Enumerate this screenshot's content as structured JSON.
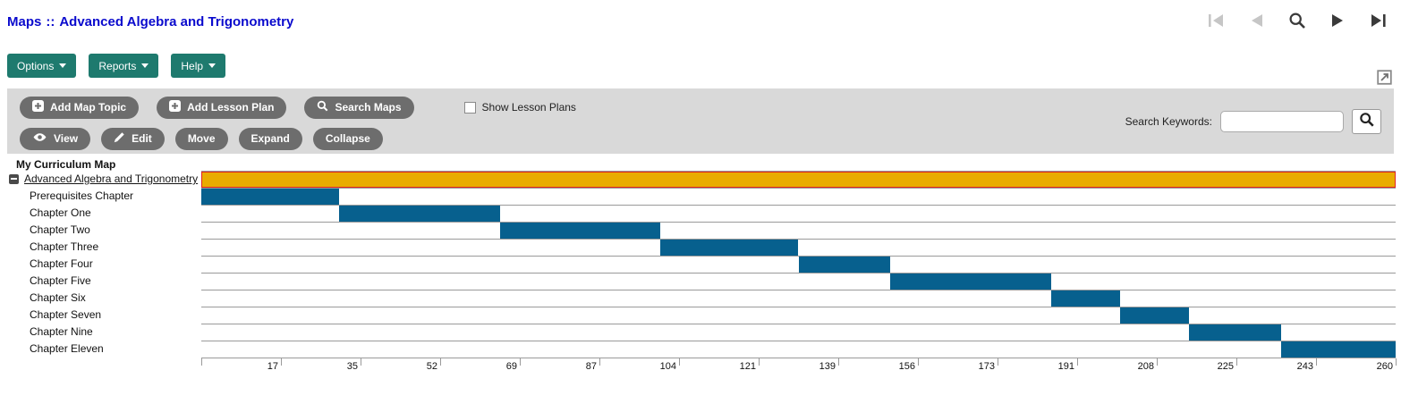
{
  "header": {
    "breadcrumb_root": "Maps",
    "breadcrumb_separator": "::",
    "title": "Advanced Algebra and Trigonometry"
  },
  "nav": {
    "first_icon": "first-page-icon",
    "prev_icon": "previous-page-icon",
    "search_icon": "search-icon",
    "next_icon": "next-page-icon",
    "last_icon": "last-page-icon"
  },
  "menus": {
    "options": "Options",
    "reports": "Reports",
    "help": "Help"
  },
  "toolbar": {
    "add_map_topic": "Add Map Topic",
    "add_lesson_plan": "Add Lesson Plan",
    "search_maps": "Search Maps",
    "show_lesson_plans": "Show Lesson Plans",
    "show_lesson_plans_checked": false,
    "view": "View",
    "edit": "Edit",
    "move": "Move",
    "expand": "Expand",
    "collapse": "Collapse",
    "search_keywords_label": "Search Keywords:",
    "search_input_value": ""
  },
  "tree": {
    "root_label": "My Curriculum Map"
  },
  "colors": {
    "link_blue": "#0a0acd",
    "menu_green": "#1e7a6e",
    "button_gray": "#6d6d6d",
    "toolbar_bg": "#d9d9d9",
    "map_bar_fill": "#e9ac00",
    "map_bar_border": "#e02420",
    "chapter_bar_fill": "#07608e",
    "grid_gray": "#9a9a9a"
  },
  "chart_data": {
    "type": "gantt",
    "title": "My Curriculum Map",
    "xlabel": "",
    "xlim": [
      0,
      260
    ],
    "tick_labels": [
      "17",
      "35",
      "52",
      "69",
      "87",
      "104",
      "121",
      "139",
      "156",
      "173",
      "191",
      "208",
      "225",
      "243",
      "260"
    ],
    "rows": [
      {
        "label": "Advanced Algebra and Trigonometry",
        "start": 0,
        "end": 260,
        "bar_color": "#e9ac00",
        "border_color": "#e02420",
        "is_map_row": true
      },
      {
        "label": "Prerequisites Chapter",
        "start": 0,
        "end": 30,
        "bar_color": "#07608e"
      },
      {
        "label": "Chapter One",
        "start": 30,
        "end": 65,
        "bar_color": "#07608e"
      },
      {
        "label": "Chapter Two",
        "start": 65,
        "end": 100,
        "bar_color": "#07608e"
      },
      {
        "label": "Chapter Three",
        "start": 100,
        "end": 130,
        "bar_color": "#07608e"
      },
      {
        "label": "Chapter Four",
        "start": 130,
        "end": 150,
        "bar_color": "#07608e"
      },
      {
        "label": "Chapter Five",
        "start": 150,
        "end": 185,
        "bar_color": "#07608e"
      },
      {
        "label": "Chapter Six",
        "start": 185,
        "end": 200,
        "bar_color": "#07608e"
      },
      {
        "label": "Chapter Seven",
        "start": 200,
        "end": 215,
        "bar_color": "#07608e"
      },
      {
        "label": "Chapter Nine",
        "start": 215,
        "end": 235,
        "bar_color": "#07608e"
      },
      {
        "label": "Chapter Eleven",
        "start": 235,
        "end": 260,
        "bar_color": "#07608e"
      }
    ]
  }
}
